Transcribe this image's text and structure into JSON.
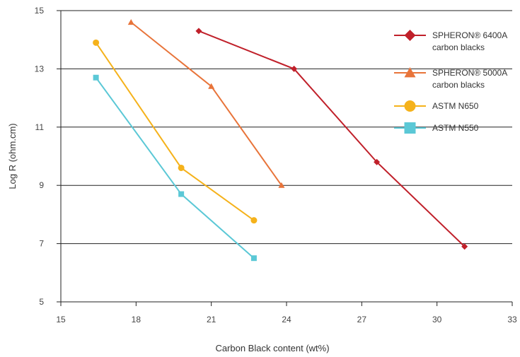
{
  "chart_data": {
    "type": "line",
    "title": "",
    "xlabel": "Carbon Black content (wt%)",
    "ylabel": "Log R (ohm.cm)",
    "xlim": [
      15,
      33
    ],
    "ylim": [
      5,
      15
    ],
    "xticks": [
      15,
      18,
      21,
      24,
      27,
      30,
      33
    ],
    "yticks": [
      5,
      7,
      9,
      11,
      13,
      15
    ],
    "grid": "horizontal",
    "legend_position": "top-right",
    "series": [
      {
        "legend_lines": [
          "SPHERON® 6400A",
          "carbon blacks"
        ],
        "color": "#c0202a",
        "marker": "diamond",
        "points": [
          [
            20.5,
            14.3
          ],
          [
            24.3,
            13.0
          ],
          [
            27.6,
            9.8
          ],
          [
            31.1,
            6.9
          ]
        ]
      },
      {
        "legend_lines": [
          "SPHERON® 5000A",
          "carbon blacks"
        ],
        "color": "#e8743a",
        "marker": "triangle",
        "points": [
          [
            17.8,
            14.6
          ],
          [
            21.0,
            12.4
          ],
          [
            23.8,
            9.0
          ]
        ]
      },
      {
        "legend_lines": [
          "ASTM N650"
        ],
        "color": "#f5b21b",
        "marker": "circle",
        "points": [
          [
            16.4,
            13.9
          ],
          [
            19.8,
            9.6
          ],
          [
            22.7,
            7.8
          ]
        ]
      },
      {
        "legend_lines": [
          "ASTM N550"
        ],
        "color": "#5bc8d6",
        "marker": "square",
        "points": [
          [
            16.4,
            12.7
          ],
          [
            19.8,
            8.7
          ],
          [
            22.7,
            6.5
          ]
        ]
      }
    ]
  }
}
